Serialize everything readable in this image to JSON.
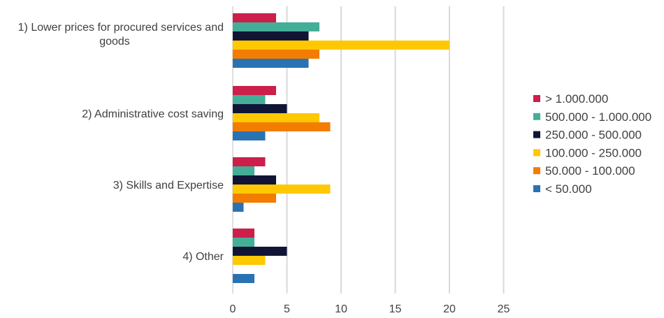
{
  "chart_data": {
    "type": "bar",
    "orientation": "horizontal",
    "title": "",
    "xlabel": "",
    "ylabel": "",
    "xlim": [
      0,
      25
    ],
    "x_ticks": [
      0,
      5,
      10,
      15,
      20,
      25
    ],
    "grid": true,
    "legend_position": "right",
    "categories": [
      "1) Lower prices for procured services and goods",
      "2) Administrative cost saving",
      "3) Skills and Expertise",
      "4) Other"
    ],
    "category_label_lines": [
      [
        "1) Lower prices for procured services and",
        "goods"
      ],
      [
        "2) Administrative cost saving"
      ],
      [
        "3) Skills and Expertise"
      ],
      [
        "4) Other"
      ]
    ],
    "series": [
      {
        "name": "> 1.000.000",
        "color": "#cc1f4a",
        "values": [
          4,
          4,
          3,
          2
        ]
      },
      {
        "name": "500.000 - 1.000.000",
        "color": "#45ae98",
        "values": [
          8,
          3,
          2,
          2
        ]
      },
      {
        "name": "250.000 - 500.000",
        "color": "#111535",
        "values": [
          7,
          5,
          4,
          5
        ]
      },
      {
        "name": "100.000 - 250.000",
        "color": "#ffc800",
        "values": [
          20,
          8,
          9,
          3
        ]
      },
      {
        "name": "50.000 - 100.000",
        "color": "#f27d00",
        "values": [
          8,
          9,
          4,
          0
        ]
      },
      {
        "name": "< 50.000",
        "color": "#2a73b2",
        "values": [
          7,
          3,
          1,
          2
        ]
      }
    ]
  }
}
